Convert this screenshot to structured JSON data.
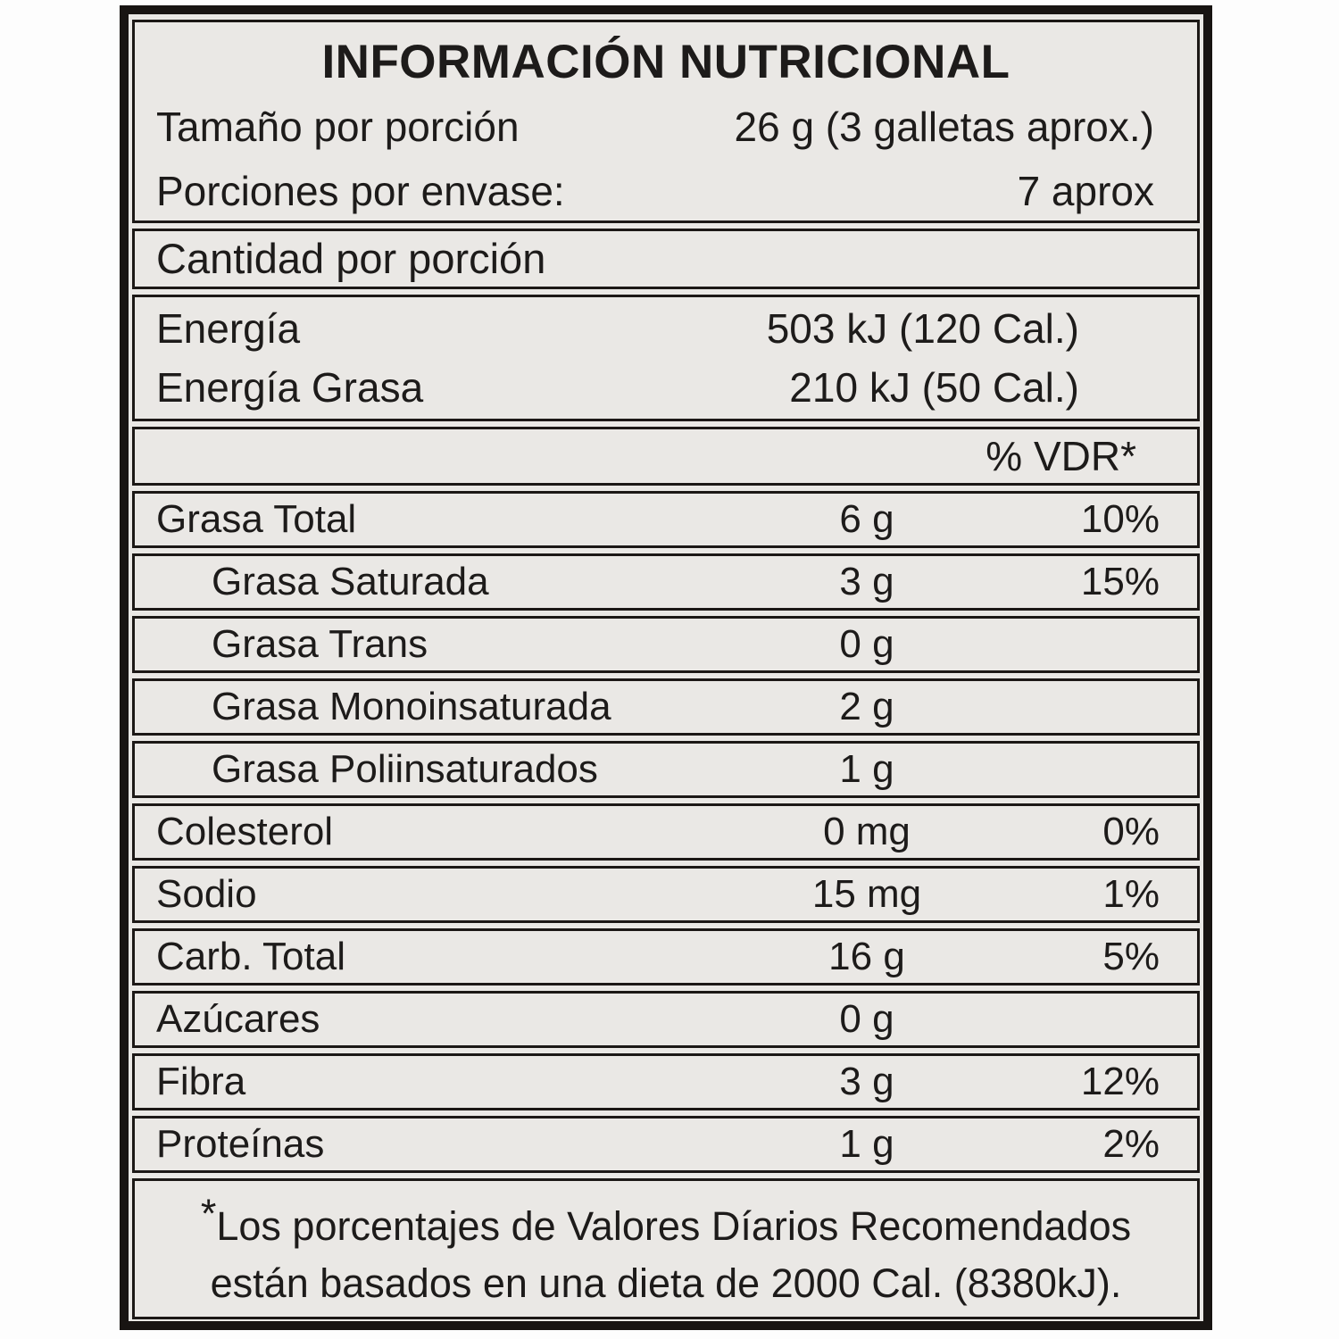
{
  "label": {
    "title": "INFORMACIÓN NUTRICIONAL",
    "serving": {
      "size_label": "Tamaño por porción",
      "size_value": "26 g (3 galletas aprox.)",
      "per_container_label": "Porciones por envase:",
      "per_container_value": "7 aprox"
    },
    "amount_header": "Cantidad por porción",
    "energy_rows": [
      {
        "label": "Energía",
        "value": "503 kJ (120 Cal.)"
      },
      {
        "label": "Energía Grasa",
        "value": "210 kJ (50 Cal.)"
      }
    ],
    "vdr_header": "% VDR*",
    "nutrients": [
      {
        "label": "Grasa Total",
        "amount": "6 g",
        "dv": "10%"
      },
      {
        "label": "Grasa Saturada",
        "amount": "3 g",
        "dv": "15%"
      },
      {
        "label": "Grasa Trans",
        "amount": "0 g",
        "dv": ""
      },
      {
        "label": "Grasa Monoinsaturada",
        "amount": "2 g",
        "dv": ""
      },
      {
        "label": "Grasa Poliinsaturados",
        "amount": "1 g",
        "dv": ""
      },
      {
        "label": "Colesterol",
        "amount": "0 mg",
        "dv": "0%"
      },
      {
        "label": "Sodio",
        "amount": "15 mg",
        "dv": "1%"
      },
      {
        "label": "Carb. Total",
        "amount": "16 g",
        "dv": "5%"
      },
      {
        "label": "Azúcares",
        "amount": "0 g",
        "dv": ""
      },
      {
        "label": "Fibra",
        "amount": "3 g",
        "dv": "12%"
      },
      {
        "label": "Proteínas",
        "amount": "1 g",
        "dv": "2%"
      }
    ],
    "footnote": {
      "marker": "*",
      "line1": "Los porcentajes de Valores Díarios Recomendados",
      "line2": "están basados en una dieta de 2000 Cal. (8380kJ)."
    },
    "colors": {
      "border": "#181412",
      "background": "#eae8e5",
      "page": "#fdfdfd",
      "text": "#1d1b1a"
    }
  }
}
